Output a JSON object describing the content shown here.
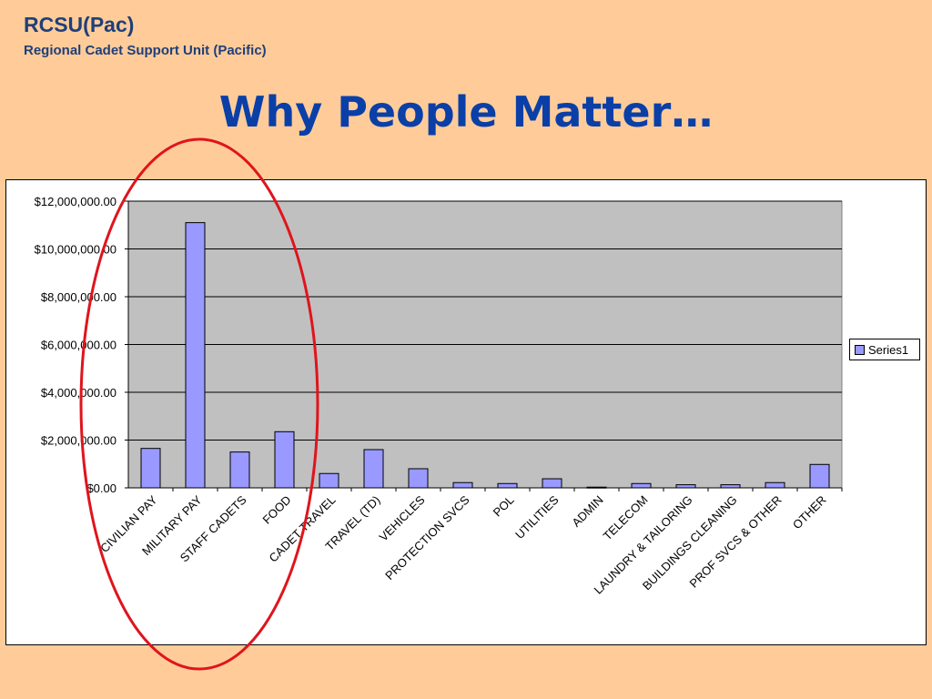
{
  "header": {
    "org_name": "RCSU(Pac)",
    "org_full_name": "Regional Cadet Support Unit (Pacific)"
  },
  "slide": {
    "title": "Why People Matter…"
  },
  "colors": {
    "background": "#FFCC99",
    "title": "#0a3fa8",
    "bar_fill": "#9999FF",
    "plot_area": "#C0C0C0",
    "highlight_ellipse": "#e0141c"
  },
  "chart_data": {
    "type": "bar",
    "categories": [
      "CIVILIAN  PAY",
      "MILITARY PAY",
      "STAFF CADETS",
      "FOOD",
      "CADET TRAVEL",
      "TRAVEL (TD)",
      "VEHICLES",
      "PROTECTION SVCS",
      "POL",
      "UTILITIES",
      "ADMIN",
      "TELECOM",
      "LAUNDRY & TAILORING",
      "BUILDINGS CLEANING",
      "PROF SVCS & OTHER",
      "OTHER"
    ],
    "series": [
      {
        "name": "Series1",
        "values": [
          1650000,
          11100000,
          1500000,
          2350000,
          600000,
          1600000,
          800000,
          220000,
          180000,
          380000,
          30000,
          180000,
          130000,
          130000,
          220000,
          980000
        ]
      }
    ],
    "y_ticks": [
      "$0.00",
      "$2,000,000.00",
      "$4,000,000.00",
      "$6,000,000.00",
      "$8,000,000.00",
      "$10,000,000.00",
      "$12,000,000.00"
    ],
    "ylim": [
      0,
      12000000
    ],
    "grid": true,
    "legend_position": "right"
  }
}
